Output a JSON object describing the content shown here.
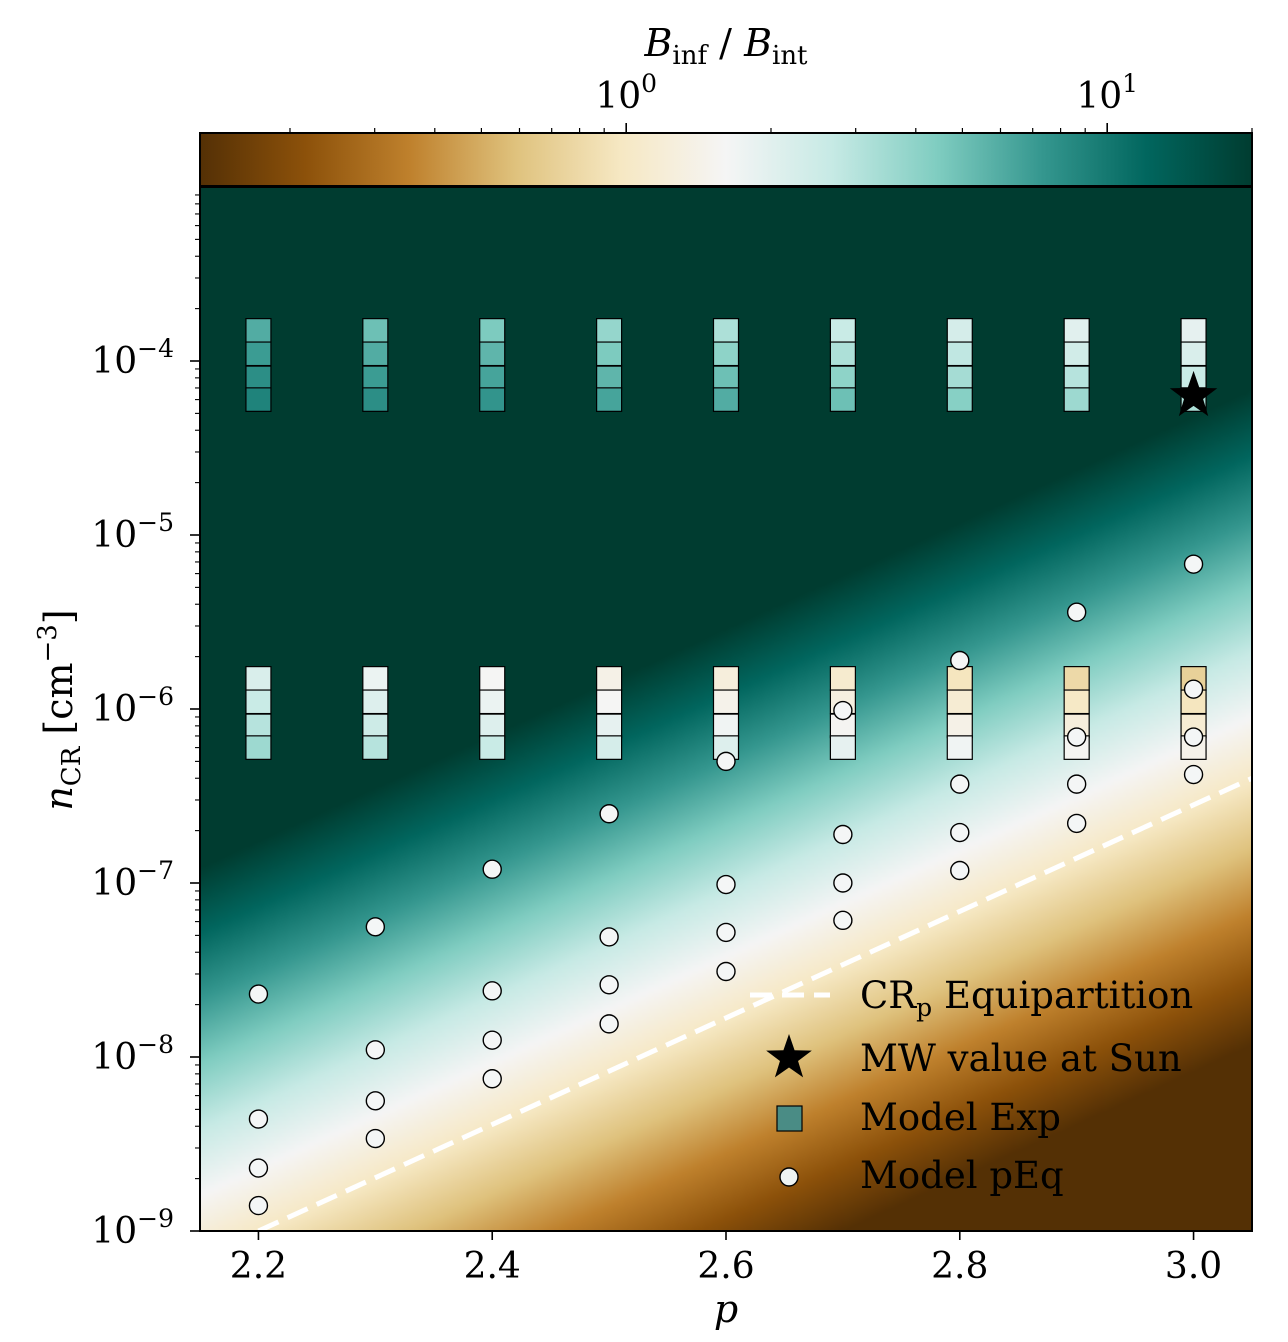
{
  "chart_data": {
    "type": "heatmap",
    "colorbar": {
      "label": "B_inf / B_int",
      "label_main_1": "B",
      "label_sub_1": "inf",
      "label_sep": " / ",
      "label_main_2": "B",
      "label_sub_2": "int",
      "scale": "log",
      "range": [
        0.13,
        20.0
      ],
      "ticks": [
        {
          "value": 1,
          "base": "10",
          "exp": "0"
        },
        {
          "value": 10,
          "base": "10",
          "exp": "1"
        }
      ],
      "colors": [
        "#543005",
        "#8c510a",
        "#bf812d",
        "#dfc27d",
        "#f6e8c3",
        "#f5f5f5",
        "#c7eae5",
        "#80cdc1",
        "#35978f",
        "#01665e",
        "#003c30"
      ]
    },
    "xlabel": "p",
    "ylabel": "n_CR [cm^-3]",
    "ylabel_main": "n",
    "ylabel_sub": "CR",
    "ylabel_rest": " [cm",
    "ylabel_sup": "−3",
    "ylabel_end": "]",
    "xlim": [
      2.15,
      3.05
    ],
    "ylim": [
      1e-09,
      0.001
    ],
    "yscale": "log",
    "x_ticks": [
      "2.2",
      "2.4",
      "2.6",
      "2.8",
      "3.0"
    ],
    "y_ticks": [
      {
        "value": 1e-09,
        "base": "10",
        "exp": "−9"
      },
      {
        "value": 1e-08,
        "base": "10",
        "exp": "−8"
      },
      {
        "value": 1e-07,
        "base": "10",
        "exp": "−7"
      },
      {
        "value": 1e-06,
        "base": "10",
        "exp": "−6"
      },
      {
        "value": 1e-05,
        "base": "10",
        "exp": "−5"
      },
      {
        "value": 0.0001,
        "base": "10",
        "exp": "−4"
      }
    ],
    "equipartition_line": {
      "x": [
        2.2,
        3.05
      ],
      "y": [
        1e-09,
        4e-07
      ]
    },
    "mw_value": {
      "x": 3.0,
      "y": 6.3e-05
    },
    "model_exp": [
      {
        "x": 2.2,
        "cells": [
          {
            "y": 0.00015,
            "r": 6.0
          },
          {
            "y": 0.00011,
            "r": 7.0
          },
          {
            "y": 8e-05,
            "r": 8.0
          },
          {
            "y": 6e-05,
            "r": 9.0
          }
        ]
      },
      {
        "x": 2.3,
        "cells": [
          {
            "y": 0.00015,
            "r": 5.0
          },
          {
            "y": 0.00011,
            "r": 6.0
          },
          {
            "y": 8e-05,
            "r": 7.0
          },
          {
            "y": 6e-05,
            "r": 8.0
          }
        ]
      },
      {
        "x": 2.4,
        "cells": [
          {
            "y": 0.00015,
            "r": 4.5
          },
          {
            "y": 0.00011,
            "r": 5.5
          },
          {
            "y": 8e-05,
            "r": 6.5
          },
          {
            "y": 6e-05,
            "r": 7.5
          }
        ]
      },
      {
        "x": 2.5,
        "cells": [
          {
            "y": 0.00015,
            "r": 3.8
          },
          {
            "y": 0.00011,
            "r": 4.5
          },
          {
            "y": 8e-05,
            "r": 5.5
          },
          {
            "y": 6e-05,
            "r": 6.5
          }
        ]
      },
      {
        "x": 2.6,
        "cells": [
          {
            "y": 0.00015,
            "r": 3.2
          },
          {
            "y": 0.00011,
            "r": 4.0
          },
          {
            "y": 8e-05,
            "r": 5.0
          },
          {
            "y": 6e-05,
            "r": 6.0
          }
        ]
      },
      {
        "x": 2.7,
        "cells": [
          {
            "y": 0.00015,
            "r": 2.6
          },
          {
            "y": 0.00011,
            "r": 3.2
          },
          {
            "y": 8e-05,
            "r": 4.0
          },
          {
            "y": 6e-05,
            "r": 5.0
          }
        ]
      },
      {
        "x": 2.8,
        "cells": [
          {
            "y": 0.00015,
            "r": 2.3
          },
          {
            "y": 0.00011,
            "r": 2.8
          },
          {
            "y": 8e-05,
            "r": 3.4
          },
          {
            "y": 6e-05,
            "r": 4.2
          }
        ]
      },
      {
        "x": 2.9,
        "cells": [
          {
            "y": 0.00015,
            "r": 2.0
          },
          {
            "y": 0.00011,
            "r": 2.4
          },
          {
            "y": 8e-05,
            "r": 3.0
          },
          {
            "y": 6e-05,
            "r": 3.6
          }
        ]
      },
      {
        "x": 3.0,
        "cells": [
          {
            "y": 0.00015,
            "r": 1.9
          },
          {
            "y": 0.00011,
            "r": 2.2
          },
          {
            "y": 8e-05,
            "r": 2.6
          },
          {
            "y": 6e-05,
            "r": 3.2
          }
        ]
      },
      {
        "x": 2.2,
        "cells": [
          {
            "y": 1.5e-06,
            "r": 2.2
          },
          {
            "y": 1.1e-06,
            "r": 2.6
          },
          {
            "y": 8e-07,
            "r": 3.0
          },
          {
            "y": 6e-07,
            "r": 3.6
          }
        ]
      },
      {
        "x": 2.3,
        "cells": [
          {
            "y": 1.5e-06,
            "r": 1.8
          },
          {
            "y": 1.1e-06,
            "r": 2.1
          },
          {
            "y": 8e-07,
            "r": 2.5
          },
          {
            "y": 6e-07,
            "r": 3.0
          }
        ]
      },
      {
        "x": 2.4,
        "cells": [
          {
            "y": 1.5e-06,
            "r": 1.6
          },
          {
            "y": 1.1e-06,
            "r": 1.8
          },
          {
            "y": 8e-07,
            "r": 2.1
          },
          {
            "y": 6e-07,
            "r": 2.6
          }
        ]
      },
      {
        "x": 2.5,
        "cells": [
          {
            "y": 1.5e-06,
            "r": 1.4
          },
          {
            "y": 1.1e-06,
            "r": 1.6
          },
          {
            "y": 8e-07,
            "r": 1.9
          },
          {
            "y": 6e-07,
            "r": 2.3
          }
        ]
      },
      {
        "x": 2.6,
        "cells": [
          {
            "y": 1.5e-06,
            "r": 1.25
          },
          {
            "y": 1.1e-06,
            "r": 1.45
          },
          {
            "y": 8e-07,
            "r": 1.7
          },
          {
            "y": 6e-07,
            "r": 2.1
          }
        ]
      },
      {
        "x": 2.7,
        "cells": [
          {
            "y": 1.5e-06,
            "r": 1.1
          },
          {
            "y": 1.1e-06,
            "r": 1.3
          },
          {
            "y": 8e-07,
            "r": 1.55
          },
          {
            "y": 6e-07,
            "r": 1.9
          }
        ]
      },
      {
        "x": 2.8,
        "cells": [
          {
            "y": 1.5e-06,
            "r": 0.95
          },
          {
            "y": 1.1e-06,
            "r": 1.15
          },
          {
            "y": 8e-07,
            "r": 1.4
          },
          {
            "y": 6e-07,
            "r": 1.7
          }
        ]
      },
      {
        "x": 2.9,
        "cells": [
          {
            "y": 1.5e-06,
            "r": 0.8
          },
          {
            "y": 1.1e-06,
            "r": 1.0
          },
          {
            "y": 8e-07,
            "r": 1.25
          },
          {
            "y": 6e-07,
            "r": 1.55
          }
        ]
      },
      {
        "x": 3.0,
        "cells": [
          {
            "y": 1.5e-06,
            "r": 0.72
          },
          {
            "y": 1.1e-06,
            "r": 0.95
          },
          {
            "y": 8e-07,
            "r": 1.15
          },
          {
            "y": 6e-07,
            "r": 1.45
          }
        ]
      }
    ],
    "model_peq": [
      {
        "x": 2.2,
        "y": 2.3e-08
      },
      {
        "x": 2.2,
        "y": 4.4e-09
      },
      {
        "x": 2.2,
        "y": 2.3e-09
      },
      {
        "x": 2.2,
        "y": 1.4e-09
      },
      {
        "x": 2.3,
        "y": 5.6e-08
      },
      {
        "x": 2.3,
        "y": 1.1e-08
      },
      {
        "x": 2.3,
        "y": 5.6e-09
      },
      {
        "x": 2.3,
        "y": 3.4e-09
      },
      {
        "x": 2.4,
        "y": 1.2e-07
      },
      {
        "x": 2.4,
        "y": 2.4e-08
      },
      {
        "x": 2.4,
        "y": 1.25e-08
      },
      {
        "x": 2.4,
        "y": 7.5e-09
      },
      {
        "x": 2.5,
        "y": 2.5e-07
      },
      {
        "x": 2.5,
        "y": 4.9e-08
      },
      {
        "x": 2.5,
        "y": 2.6e-08
      },
      {
        "x": 2.5,
        "y": 1.55e-08
      },
      {
        "x": 2.6,
        "y": 5e-07
      },
      {
        "x": 2.6,
        "y": 9.8e-08
      },
      {
        "x": 2.6,
        "y": 5.2e-08
      },
      {
        "x": 2.6,
        "y": 3.1e-08
      },
      {
        "x": 2.7,
        "y": 9.8e-07
      },
      {
        "x": 2.7,
        "y": 1.9e-07
      },
      {
        "x": 2.7,
        "y": 1e-07
      },
      {
        "x": 2.7,
        "y": 6.1e-08
      },
      {
        "x": 2.8,
        "y": 1.9e-06
      },
      {
        "x": 2.8,
        "y": 3.7e-07
      },
      {
        "x": 2.8,
        "y": 1.95e-07
      },
      {
        "x": 2.8,
        "y": 1.18e-07
      },
      {
        "x": 2.9,
        "y": 3.6e-06
      },
      {
        "x": 2.9,
        "y": 6.9e-07
      },
      {
        "x": 2.9,
        "y": 3.7e-07
      },
      {
        "x": 2.9,
        "y": 2.2e-07
      },
      {
        "x": 3.0,
        "y": 6.8e-06
      },
      {
        "x": 3.0,
        "y": 1.3e-06
      },
      {
        "x": 3.0,
        "y": 6.9e-07
      },
      {
        "x": 3.0,
        "y": 4.2e-07
      }
    ],
    "legend": {
      "placement": "lower-right",
      "entries": [
        {
          "key": "line",
          "main": "CR",
          "sub": "p",
          "rest": " Equipartition"
        },
        {
          "key": "star",
          "main": "MW value at Sun",
          "sub": "",
          "rest": ""
        },
        {
          "key": "square",
          "main": "Model Exp",
          "sub": "",
          "rest": ""
        },
        {
          "key": "circle",
          "main": "Model pEq",
          "sub": "",
          "rest": ""
        }
      ]
    }
  }
}
